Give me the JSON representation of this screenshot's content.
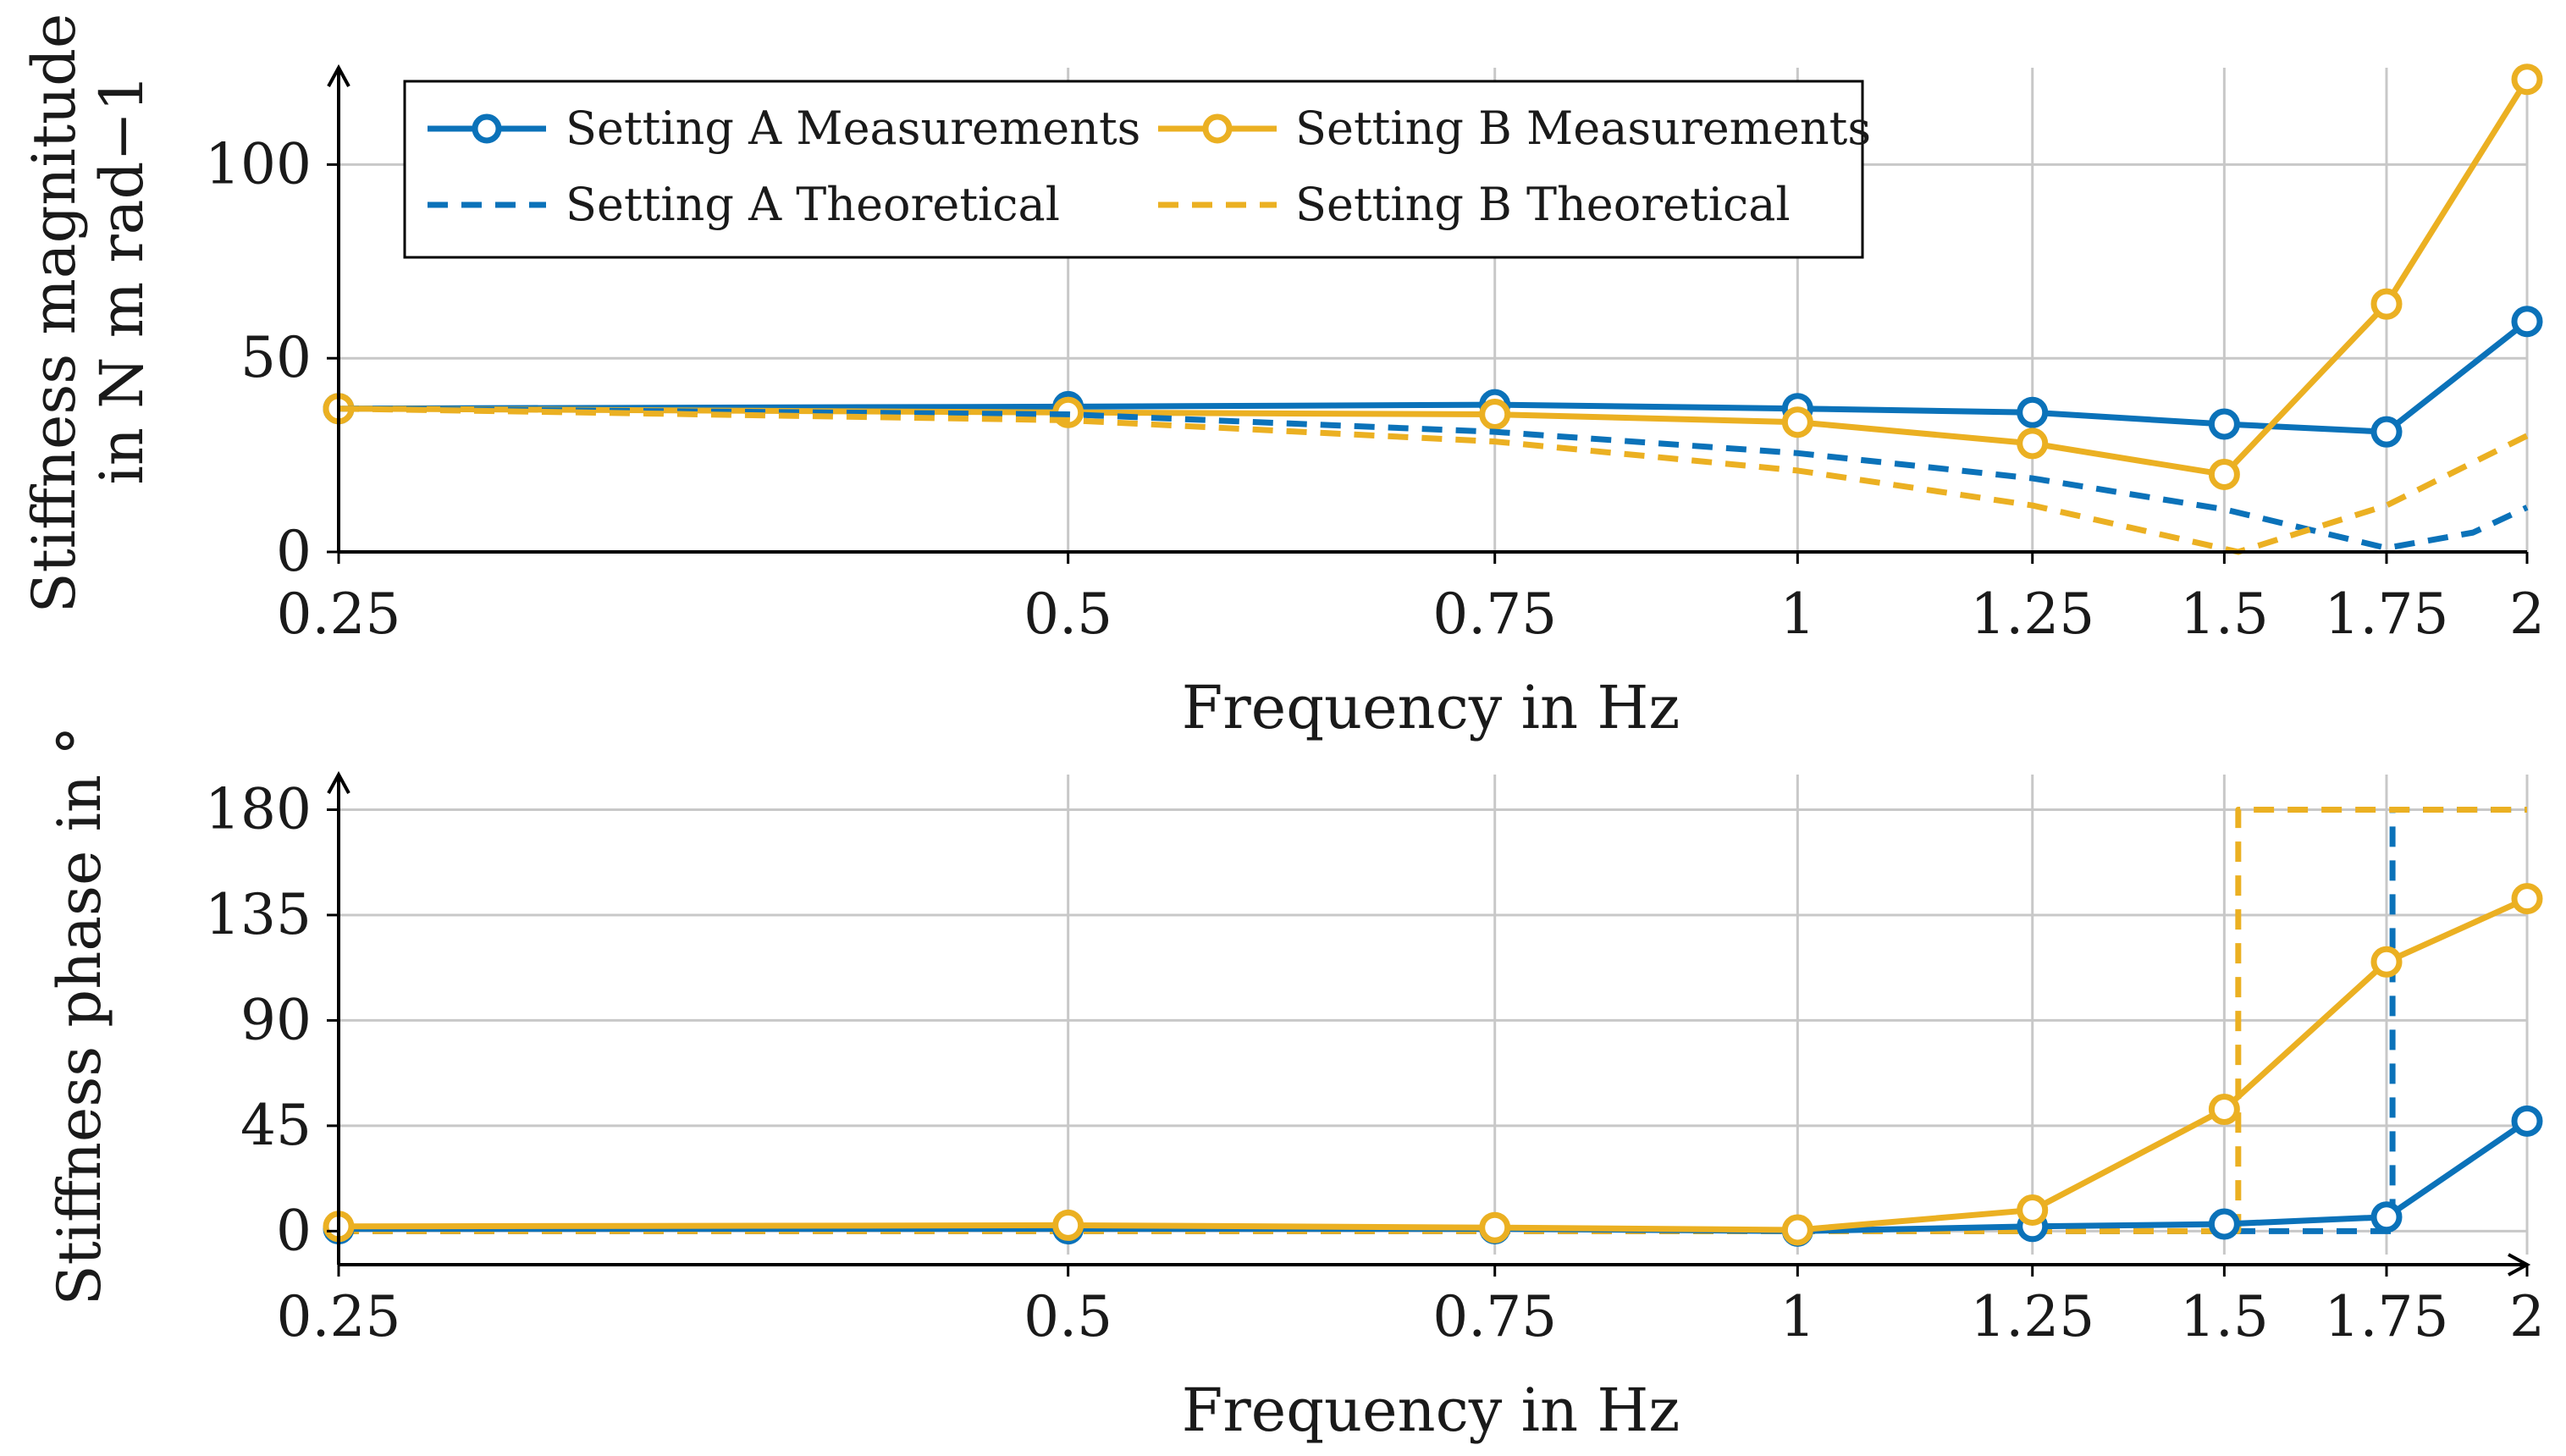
{
  "colors": {
    "setting_a": "#0b72b9",
    "setting_b": "#ebb022",
    "grid": "#c8c8c8",
    "axis": "#000000"
  },
  "chart_data": [
    {
      "id": "magnitude",
      "type": "line",
      "title": "",
      "xlabel": "Frequency in Hz",
      "ylabel_line1": "Stiffness magnitude",
      "ylabel_line2": "in N m rad−1",
      "x_scale": "log",
      "xlim": [
        0.25,
        2
      ],
      "ylim": [
        0,
        125
      ],
      "grid": true,
      "xticks": [
        0.25,
        0.5,
        0.75,
        1,
        1.25,
        1.5,
        1.75,
        2
      ],
      "xtick_labels": [
        "0.25",
        "0.5",
        "0.75",
        "1",
        "1.25",
        "1.5",
        "1.75",
        "2"
      ],
      "yticks": [
        0,
        50,
        100
      ],
      "ytick_labels": [
        "0",
        "50",
        "100"
      ],
      "legend_position": "top-left",
      "series": [
        {
          "name": "Setting A Measurements",
          "color_key": "setting_a",
          "style": "solid",
          "markers": true,
          "x": [
            0.25,
            0.5,
            0.75,
            1,
            1.25,
            1.5,
            1.75,
            2
          ],
          "y": [
            37,
            37.5,
            38,
            37,
            36,
            33,
            31,
            59.5
          ]
        },
        {
          "name": "Setting B Measurements",
          "color_key": "setting_b",
          "style": "solid",
          "markers": true,
          "x": [
            0.25,
            0.5,
            0.75,
            1,
            1.25,
            1.5,
            1.75,
            2
          ],
          "y": [
            37,
            36,
            35.5,
            33.5,
            28,
            20,
            64,
            122
          ]
        },
        {
          "name": "Setting A Theoretical",
          "color_key": "setting_a",
          "style": "dashed",
          "markers": false,
          "x": [
            0.25,
            0.5,
            0.75,
            1,
            1.25,
            1.5,
            1.75,
            1.9,
            2
          ],
          "y": [
            37,
            35.5,
            31,
            25.5,
            19,
            11,
            1,
            5,
            11.5
          ]
        },
        {
          "name": "Setting B Theoretical",
          "color_key": "setting_b",
          "style": "dashed",
          "markers": false,
          "x": [
            0.25,
            0.5,
            0.75,
            1,
            1.25,
            1.52,
            1.75,
            2
          ],
          "y": [
            37,
            34,
            28.5,
            21,
            12,
            0,
            12,
            30
          ]
        }
      ]
    },
    {
      "id": "phase",
      "type": "line",
      "title": "",
      "xlabel": "Frequency in Hz",
      "ylabel": "Stiffness phase in °",
      "x_scale": "log",
      "xlim": [
        0.25,
        2
      ],
      "ylim": [
        -10,
        195
      ],
      "grid": true,
      "xticks": [
        0.25,
        0.5,
        0.75,
        1,
        1.25,
        1.5,
        1.75,
        2
      ],
      "xtick_labels": [
        "0.25",
        "0.5",
        "0.75",
        "1",
        "1.25",
        "1.5",
        "1.75",
        "2"
      ],
      "yticks": [
        0,
        45,
        90,
        135,
        180
      ],
      "ytick_labels": [
        "0",
        "45",
        "90",
        "135",
        "180"
      ],
      "series": [
        {
          "name": "Setting A Theoretical",
          "color_key": "setting_a",
          "style": "dashed",
          "markers": false,
          "x": [
            0.25,
            1,
            1.5,
            1.76,
            1.76,
            2
          ],
          "y": [
            0,
            0,
            0,
            0,
            180,
            180
          ]
        },
        {
          "name": "Setting B Theoretical",
          "color_key": "setting_b",
          "style": "dashed",
          "markers": false,
          "x": [
            0.25,
            1,
            1.25,
            1.52,
            1.52,
            2
          ],
          "y": [
            0,
            0,
            0,
            0,
            180,
            180
          ]
        },
        {
          "name": "Setting A Measurements",
          "color_key": "setting_a",
          "style": "solid",
          "markers": true,
          "x": [
            0.25,
            0.5,
            0.75,
            1,
            1.25,
            1.5,
            1.75,
            2
          ],
          "y": [
            1,
            1,
            1,
            0,
            2,
            3,
            6,
            47
          ]
        },
        {
          "name": "Setting B Measurements",
          "color_key": "setting_b",
          "style": "solid",
          "markers": true,
          "x": [
            0.25,
            0.5,
            0.75,
            1,
            1.25,
            1.5,
            1.75,
            2
          ],
          "y": [
            2,
            2.5,
            1.5,
            0.5,
            9,
            52,
            115,
            142
          ]
        }
      ]
    }
  ]
}
